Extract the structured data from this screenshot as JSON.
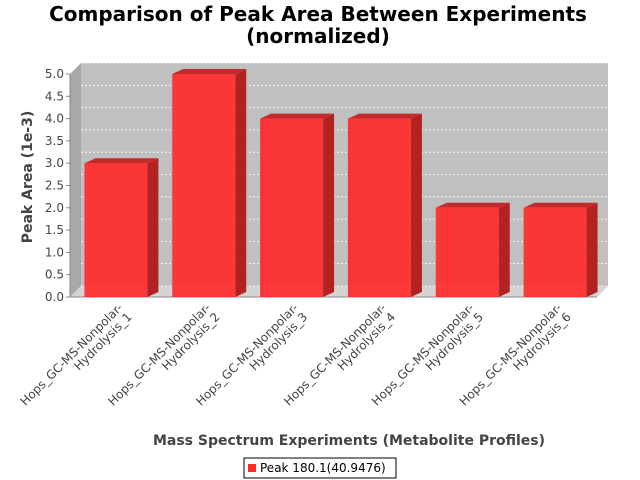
{
  "chart_data": {
    "type": "bar",
    "title_line1": "Comparison of Peak Area Between Experiments",
    "title_line2": "(normalized)",
    "xlabel": "Mass Spectrum Experiments (Metabolite Profiles)",
    "ylabel": "Peak Area (1e-3)",
    "ylim": [
      0,
      5.0
    ],
    "yticks": [
      "0.0",
      "0.5",
      "1.0",
      "1.5",
      "2.0",
      "2.5",
      "3.0",
      "3.5",
      "4.0",
      "4.5",
      "5.0"
    ],
    "categories": [
      [
        "Hops_GC-MS-Nonpolar-",
        "Hydrolysis_1"
      ],
      [
        "Hops_GC-MS-Nonpolar-",
        "Hydrolysis_2"
      ],
      [
        "Hops_GC-MS-Nonpolar-",
        "Hydrolysis_3"
      ],
      [
        "Hops_GC-MS-Nonpolar-",
        "Hydrolysis_4"
      ],
      [
        "Hops_GC-MS-Nonpolar-",
        "Hydrolysis_5"
      ],
      [
        "Hops_GC-MS-Nonpolar-",
        "Hydrolysis_6"
      ]
    ],
    "series": [
      {
        "name": "Peak 180.1(40.9476)",
        "values": [
          3.0,
          5.0,
          4.0,
          4.0,
          2.0,
          2.0
        ],
        "color": "#ff2a2a"
      }
    ],
    "grid": true,
    "legend_position": "bottom",
    "plot_background": "#c0c0c0"
  }
}
